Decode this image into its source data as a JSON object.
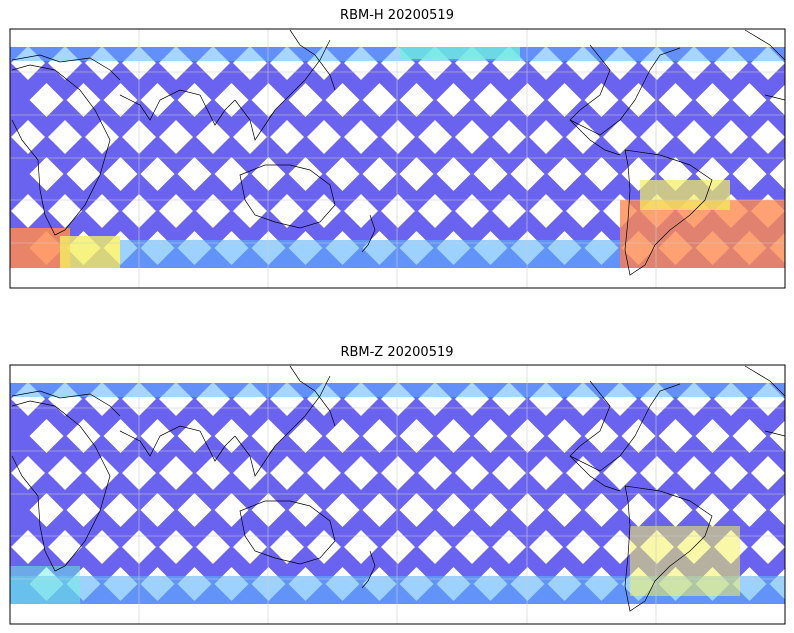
{
  "panels": [
    {
      "title": "RBM-H 20200519"
    },
    {
      "title": "RBM-Z 20200519"
    }
  ],
  "colors": {
    "track_low": "#6a63f0",
    "track_mid": "#5cb4ff",
    "track_cyan": "#6ff0e0",
    "track_yellow": "#f4f060",
    "track_orange": "#ff8a50",
    "coastline": "#000000",
    "gridline": "#cccccc",
    "frame": "#000000"
  },
  "map": {
    "projection": "equirectangular",
    "gridlines": true,
    "colormap": "jet-like (blue = low, orange = high)"
  }
}
